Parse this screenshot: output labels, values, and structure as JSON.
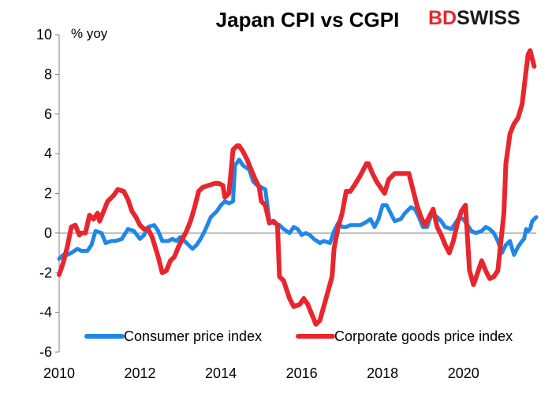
{
  "brand": {
    "logo_text_1": "BD",
    "logo_text_2": "SWISS",
    "color_red": "#e8262d",
    "color_dark": "#1a1a1a"
  },
  "chart_data": {
    "type": "line",
    "title": "Japan CPI vs CGPI",
    "ylabel": "% yoy",
    "xlabel": "",
    "xlim": [
      2010,
      2021.8
    ],
    "ylim": [
      -6,
      10
    ],
    "x_ticks": [
      2010,
      2012,
      2014,
      2016,
      2018,
      2020
    ],
    "y_ticks": [
      -6,
      -4,
      -2,
      0,
      2,
      4,
      6,
      8,
      10
    ],
    "legend_position": "bottom",
    "series": [
      {
        "name": "Consumer price index",
        "color": "#1f87e8",
        "points": [
          [
            2010.0,
            -1.3
          ],
          [
            2010.1,
            -1.1
          ],
          [
            2010.2,
            -1.1
          ],
          [
            2010.3,
            -1.0
          ],
          [
            2010.45,
            -0.8
          ],
          [
            2010.55,
            -0.9
          ],
          [
            2010.7,
            -0.9
          ],
          [
            2010.8,
            -0.6
          ],
          [
            2010.9,
            0.1
          ],
          [
            2011.05,
            0.0
          ],
          [
            2011.15,
            -0.5
          ],
          [
            2011.3,
            -0.4
          ],
          [
            2011.4,
            -0.4
          ],
          [
            2011.55,
            -0.3
          ],
          [
            2011.7,
            0.2
          ],
          [
            2011.85,
            0.1
          ],
          [
            2012.0,
            -0.3
          ],
          [
            2012.1,
            -0.1
          ],
          [
            2012.2,
            0.3
          ],
          [
            2012.35,
            0.4
          ],
          [
            2012.45,
            0.1
          ],
          [
            2012.55,
            -0.4
          ],
          [
            2012.7,
            -0.4
          ],
          [
            2012.8,
            -0.3
          ],
          [
            2012.9,
            -0.4
          ],
          [
            2013.0,
            -0.2
          ],
          [
            2013.1,
            -0.4
          ],
          [
            2013.2,
            -0.6
          ],
          [
            2013.3,
            -0.8
          ],
          [
            2013.4,
            -0.6
          ],
          [
            2013.5,
            -0.3
          ],
          [
            2013.6,
            0.1
          ],
          [
            2013.75,
            0.8
          ],
          [
            2013.9,
            1.1
          ],
          [
            2014.0,
            1.4
          ],
          [
            2014.1,
            1.6
          ],
          [
            2014.2,
            1.5
          ],
          [
            2014.3,
            1.6
          ],
          [
            2014.35,
            3.4
          ],
          [
            2014.45,
            3.7
          ],
          [
            2014.55,
            3.4
          ],
          [
            2014.7,
            3.2
          ],
          [
            2014.8,
            2.6
          ],
          [
            2014.9,
            2.4
          ],
          [
            2015.0,
            2.3
          ],
          [
            2015.1,
            2.2
          ],
          [
            2015.2,
            0.6
          ],
          [
            2015.3,
            0.5
          ],
          [
            2015.45,
            0.4
          ],
          [
            2015.55,
            0.2
          ],
          [
            2015.7,
            0.0
          ],
          [
            2015.8,
            0.3
          ],
          [
            2015.9,
            0.2
          ],
          [
            2016.0,
            -0.1
          ],
          [
            2016.1,
            0.0
          ],
          [
            2016.2,
            -0.1
          ],
          [
            2016.3,
            -0.3
          ],
          [
            2016.45,
            -0.5
          ],
          [
            2016.55,
            -0.4
          ],
          [
            2016.7,
            -0.5
          ],
          [
            2016.8,
            0.1
          ],
          [
            2016.9,
            0.5
          ],
          [
            2017.0,
            0.3
          ],
          [
            2017.1,
            0.3
          ],
          [
            2017.2,
            0.4
          ],
          [
            2017.3,
            0.4
          ],
          [
            2017.45,
            0.4
          ],
          [
            2017.55,
            0.5
          ],
          [
            2017.7,
            0.7
          ],
          [
            2017.8,
            0.3
          ],
          [
            2017.9,
            0.7
          ],
          [
            2018.0,
            1.4
          ],
          [
            2018.1,
            1.4
          ],
          [
            2018.2,
            1.0
          ],
          [
            2018.3,
            0.6
          ],
          [
            2018.45,
            0.7
          ],
          [
            2018.55,
            1.0
          ],
          [
            2018.7,
            1.3
          ],
          [
            2018.8,
            1.2
          ],
          [
            2018.9,
            0.8
          ],
          [
            2019.0,
            0.3
          ],
          [
            2019.1,
            0.3
          ],
          [
            2019.2,
            0.9
          ],
          [
            2019.35,
            0.8
          ],
          [
            2019.45,
            0.6
          ],
          [
            2019.55,
            0.3
          ],
          [
            2019.7,
            0.2
          ],
          [
            2019.8,
            0.5
          ],
          [
            2019.9,
            0.8
          ],
          [
            2020.0,
            0.7
          ],
          [
            2020.1,
            0.4
          ],
          [
            2020.2,
            0.1
          ],
          [
            2020.3,
            0.0
          ],
          [
            2020.45,
            0.1
          ],
          [
            2020.55,
            0.3
          ],
          [
            2020.65,
            0.2
          ],
          [
            2020.75,
            0.0
          ],
          [
            2020.85,
            -0.4
          ],
          [
            2020.95,
            -1.0
          ],
          [
            2021.05,
            -0.6
          ],
          [
            2021.15,
            -0.4
          ],
          [
            2021.25,
            -1.1
          ],
          [
            2021.35,
            -0.7
          ],
          [
            2021.45,
            -0.4
          ],
          [
            2021.5,
            -0.3
          ],
          [
            2021.55,
            0.2
          ],
          [
            2021.6,
            0.1
          ],
          [
            2021.65,
            0.2
          ],
          [
            2021.7,
            0.6
          ],
          [
            2021.8,
            0.8
          ]
        ]
      },
      {
        "name": "Corporate goods price index",
        "color": "#e8262d",
        "points": [
          [
            2010.0,
            -2.1
          ],
          [
            2010.1,
            -1.5
          ],
          [
            2010.2,
            -0.7
          ],
          [
            2010.3,
            0.3
          ],
          [
            2010.4,
            0.4
          ],
          [
            2010.5,
            -0.1
          ],
          [
            2010.55,
            0.0
          ],
          [
            2010.65,
            0.0
          ],
          [
            2010.75,
            0.9
          ],
          [
            2010.85,
            0.7
          ],
          [
            2010.95,
            1.0
          ],
          [
            2011.0,
            0.6
          ],
          [
            2011.1,
            1.1
          ],
          [
            2011.2,
            1.6
          ],
          [
            2011.35,
            1.9
          ],
          [
            2011.45,
            2.2
          ],
          [
            2011.6,
            2.1
          ],
          [
            2011.7,
            1.7
          ],
          [
            2011.8,
            1.1
          ],
          [
            2011.9,
            0.8
          ],
          [
            2012.0,
            0.4
          ],
          [
            2012.1,
            0.2
          ],
          [
            2012.2,
            0.2
          ],
          [
            2012.3,
            -0.2
          ],
          [
            2012.45,
            -1.2
          ],
          [
            2012.55,
            -2.0
          ],
          [
            2012.65,
            -1.9
          ],
          [
            2012.75,
            -1.4
          ],
          [
            2012.85,
            -1.2
          ],
          [
            2012.95,
            -0.7
          ],
          [
            2013.05,
            -0.3
          ],
          [
            2013.15,
            0.1
          ],
          [
            2013.25,
            0.6
          ],
          [
            2013.35,
            1.3
          ],
          [
            2013.45,
            2.1
          ],
          [
            2013.55,
            2.3
          ],
          [
            2013.7,
            2.4
          ],
          [
            2013.85,
            2.5
          ],
          [
            2013.95,
            2.5
          ],
          [
            2014.05,
            2.4
          ],
          [
            2014.1,
            1.8
          ],
          [
            2014.2,
            2.0
          ],
          [
            2014.3,
            4.2
          ],
          [
            2014.4,
            4.4
          ],
          [
            2014.45,
            4.4
          ],
          [
            2014.55,
            4.1
          ],
          [
            2014.65,
            3.7
          ],
          [
            2014.75,
            3.2
          ],
          [
            2014.85,
            2.7
          ],
          [
            2014.95,
            2.3
          ],
          [
            2015.0,
            1.6
          ],
          [
            2015.1,
            1.4
          ],
          [
            2015.2,
            0.5
          ],
          [
            2015.3,
            0.6
          ],
          [
            2015.4,
            0.4
          ],
          [
            2015.45,
            -2.2
          ],
          [
            2015.55,
            -2.4
          ],
          [
            2015.7,
            -3.3
          ],
          [
            2015.8,
            -3.7
          ],
          [
            2015.95,
            -3.6
          ],
          [
            2016.05,
            -3.3
          ],
          [
            2016.15,
            -3.6
          ],
          [
            2016.25,
            -4.1
          ],
          [
            2016.35,
            -4.6
          ],
          [
            2016.45,
            -4.4
          ],
          [
            2016.6,
            -3.3
          ],
          [
            2016.75,
            -2.2
          ],
          [
            2016.8,
            -0.8
          ],
          [
            2016.9,
            0.3
          ],
          [
            2017.0,
            1.0
          ],
          [
            2017.1,
            2.1
          ],
          [
            2017.2,
            2.1
          ],
          [
            2017.3,
            2.4
          ],
          [
            2017.45,
            2.9
          ],
          [
            2017.6,
            3.5
          ],
          [
            2017.65,
            3.5
          ],
          [
            2017.75,
            3.0
          ],
          [
            2017.85,
            2.6
          ],
          [
            2017.95,
            2.3
          ],
          [
            2018.05,
            2.0
          ],
          [
            2018.15,
            2.7
          ],
          [
            2018.3,
            3.0
          ],
          [
            2018.4,
            3.0
          ],
          [
            2018.5,
            3.0
          ],
          [
            2018.65,
            3.0
          ],
          [
            2018.75,
            2.2
          ],
          [
            2018.85,
            1.4
          ],
          [
            2018.95,
            0.8
          ],
          [
            2019.05,
            0.4
          ],
          [
            2019.15,
            0.8
          ],
          [
            2019.25,
            1.2
          ],
          [
            2019.35,
            0.3
          ],
          [
            2019.45,
            -0.1
          ],
          [
            2019.55,
            -0.6
          ],
          [
            2019.65,
            -1.0
          ],
          [
            2019.75,
            -0.4
          ],
          [
            2019.85,
            0.5
          ],
          [
            2019.95,
            1.1
          ],
          [
            2020.05,
            1.4
          ],
          [
            2020.15,
            -1.9
          ],
          [
            2020.25,
            -2.6
          ],
          [
            2020.35,
            -2.0
          ],
          [
            2020.45,
            -1.4
          ],
          [
            2020.55,
            -1.9
          ],
          [
            2020.65,
            -2.3
          ],
          [
            2020.75,
            -2.2
          ],
          [
            2020.85,
            -1.9
          ],
          [
            2021.0,
            1.0
          ],
          [
            2021.05,
            3.5
          ],
          [
            2021.15,
            5.0
          ],
          [
            2021.25,
            5.5
          ],
          [
            2021.35,
            5.8
          ],
          [
            2021.45,
            6.5
          ],
          [
            2021.55,
            8.2
          ],
          [
            2021.6,
            9.0
          ],
          [
            2021.65,
            9.2
          ],
          [
            2021.75,
            8.4
          ]
        ]
      }
    ]
  }
}
